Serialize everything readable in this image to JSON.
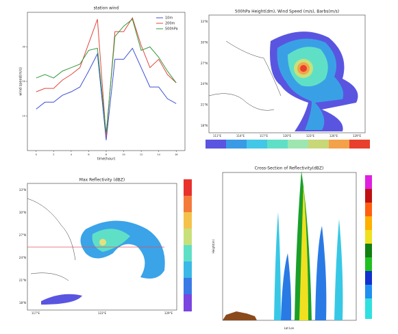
{
  "chart_data": {
    "type": "line",
    "title": "station wind",
    "x_label": "time(hour)",
    "y_label": "wind speed(m/s)",
    "x": [
      0,
      1,
      2,
      3,
      4,
      5,
      6,
      7,
      8,
      9,
      10,
      11,
      12,
      13,
      14,
      15,
      16
    ],
    "xlim": [
      -1,
      17
    ],
    "xticks": [
      0,
      2,
      4,
      6,
      8,
      10,
      12,
      14,
      16
    ],
    "ylim": [
      0,
      40
    ],
    "yticks": [
      10,
      20,
      30
    ],
    "legend": "upper right",
    "series": [
      {
        "name": "10m",
        "color": "#3b4fd6",
        "values": [
          12,
          14,
          14,
          16,
          17,
          18.4,
          23,
          28,
          3,
          26.4,
          26.4,
          29.6,
          24,
          18.4,
          18.4,
          15,
          13.6
        ]
      },
      {
        "name": "200m",
        "color": "#e2463c",
        "values": [
          17,
          18,
          18,
          20.4,
          22,
          24,
          31,
          38,
          4,
          34.4,
          34.4,
          38.4,
          30.4,
          24,
          26.4,
          22,
          19.6
        ]
      },
      {
        "name": "500hPa",
        "color": "#2e9a3a",
        "values": [
          21,
          22,
          21,
          23,
          24,
          25,
          29,
          29.6,
          5,
          33,
          36,
          38,
          29,
          30,
          27,
          23,
          19.6
        ]
      }
    ]
  },
  "panels": [
    {
      "title": "500hPa Height(dm), Wind Speed (m/s), Barbs(m/s)",
      "lat": [
        "33°N",
        "30°N",
        "27°N",
        "24°N",
        "21°N",
        "18°N"
      ],
      "lon": [
        "111°E",
        "114°E",
        "117°E",
        "120°E",
        "123°E",
        "126°E",
        "129°E"
      ]
    },
    {
      "title": "Max Reflectivity (dBZ)",
      "lat": [
        "33°N",
        "30°N",
        "27°N",
        "24°N",
        "21°N",
        "18°N"
      ],
      "lon": [
        "117°E",
        "123°E",
        "129°E"
      ]
    },
    {
      "title": "Cross-Section of Reflectivity(dBZ)",
      "y_label": "Height(m)",
      "x_label": "Lat Lon"
    }
  ]
}
